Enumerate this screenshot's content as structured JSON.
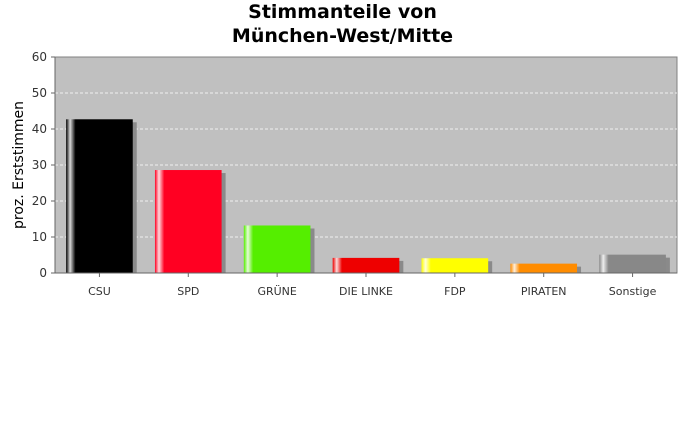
{
  "chart_data": {
    "type": "bar",
    "title_lines": [
      "Stimmanteile von",
      "München-West/Mitte"
    ],
    "ylabel": "proz. Erststimmen",
    "xlabel": "",
    "ylim": [
      0,
      60
    ],
    "yticks": [
      0,
      10,
      20,
      30,
      40,
      50,
      60
    ],
    "grid": true,
    "categories": [
      "CSU",
      "SPD",
      "GRÜNE",
      "DIE LINKE",
      "FDP",
      "PIRATEN",
      "Sonstige"
    ],
    "values": [
      42.7,
      28.6,
      13.2,
      4.2,
      4.1,
      2.6,
      5.1
    ],
    "colors": [
      "#000000",
      "#ff0022",
      "#55ee00",
      "#ee0000",
      "#ffff00",
      "#ff8c00",
      "#888888"
    ]
  }
}
